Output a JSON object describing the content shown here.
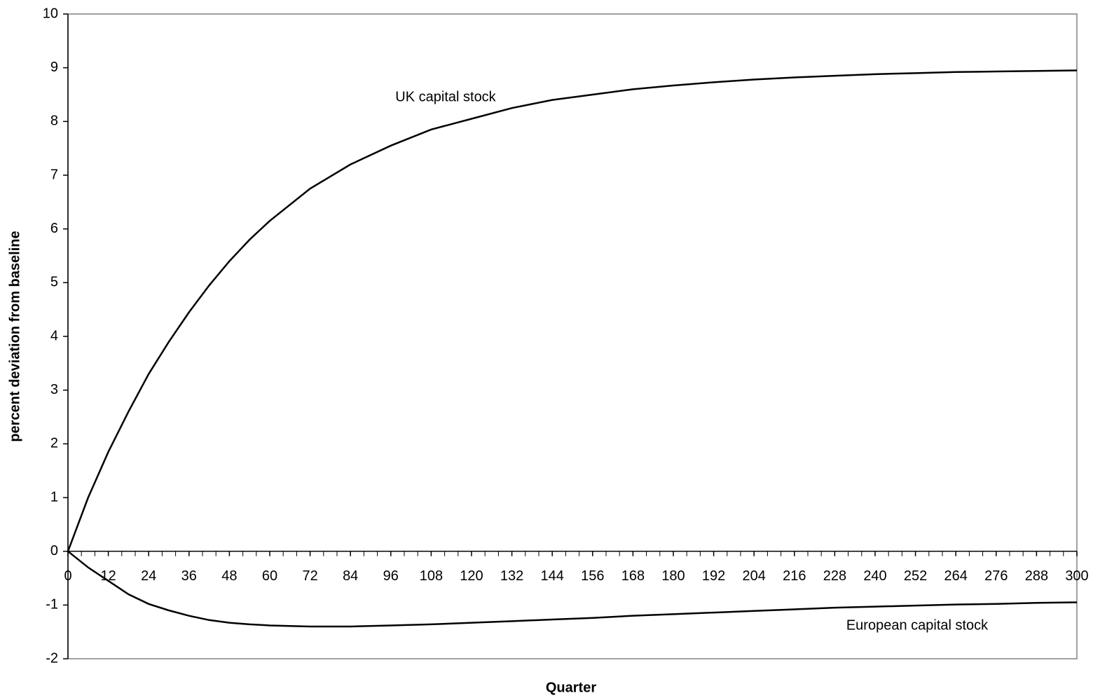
{
  "chart_data": {
    "type": "line",
    "x_label": "Quarter",
    "y_label": "percent deviation from baseline",
    "annotations": [
      "UK capital stock",
      "European capital stock"
    ],
    "x": [
      0,
      6,
      12,
      18,
      24,
      30,
      36,
      42,
      48,
      54,
      60,
      72,
      84,
      96,
      108,
      120,
      132,
      144,
      156,
      168,
      180,
      192,
      204,
      216,
      228,
      240,
      252,
      264,
      276,
      288,
      300
    ],
    "series": [
      {
        "name": "UK capital stock",
        "color": "#000000",
        "values": [
          0,
          1.0,
          1.85,
          2.6,
          3.3,
          3.9,
          4.45,
          4.95,
          5.4,
          5.8,
          6.15,
          6.75,
          7.2,
          7.55,
          7.85,
          8.05,
          8.25,
          8.4,
          8.5,
          8.6,
          8.67,
          8.73,
          8.78,
          8.82,
          8.85,
          8.88,
          8.9,
          8.92,
          8.93,
          8.94,
          8.95
        ]
      },
      {
        "name": "European capital stock",
        "color": "#000000",
        "values": [
          0,
          -0.3,
          -0.55,
          -0.8,
          -0.98,
          -1.1,
          -1.2,
          -1.28,
          -1.33,
          -1.36,
          -1.38,
          -1.4,
          -1.4,
          -1.38,
          -1.36,
          -1.33,
          -1.3,
          -1.27,
          -1.24,
          -1.2,
          -1.17,
          -1.14,
          -1.11,
          -1.08,
          -1.05,
          -1.03,
          -1.01,
          -0.99,
          -0.98,
          -0.96,
          -0.95
        ]
      }
    ],
    "xlim": [
      0,
      300
    ],
    "xticks": [
      0,
      12,
      24,
      36,
      48,
      60,
      72,
      84,
      96,
      108,
      120,
      132,
      144,
      156,
      168,
      180,
      192,
      204,
      216,
      228,
      240,
      252,
      264,
      276,
      288,
      300
    ],
    "x_minor_ticks": [
      4,
      8,
      16,
      20,
      28,
      32,
      40,
      44,
      52,
      56,
      64,
      68,
      76,
      80,
      88,
      92,
      100,
      104,
      112,
      116,
      124,
      128,
      136,
      140,
      148,
      152,
      160,
      164,
      172,
      176,
      184,
      188,
      196,
      200,
      208,
      212,
      220,
      224,
      232,
      236,
      244,
      248,
      256,
      260,
      268,
      272,
      280,
      284,
      292,
      296
    ],
    "ylim": [
      -2,
      10
    ],
    "yticks": [
      -2,
      -1,
      0,
      1,
      2,
      3,
      4,
      5,
      6,
      7,
      8,
      9,
      10
    ],
    "grid": false
  }
}
